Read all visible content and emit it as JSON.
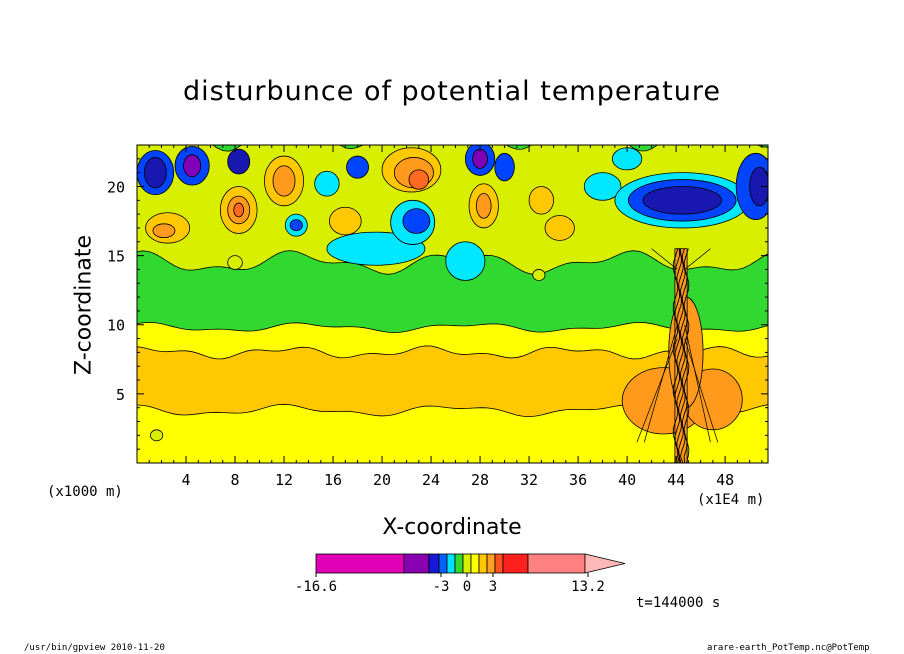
{
  "chart_data": {
    "type": "heatmap",
    "title": "disturbunce of potential temperature",
    "xlabel": "X-coordinate",
    "ylabel": "Z-coordinate",
    "x_unit_label": "(x1000 m)",
    "x_multiplier_label": "(x1E4 m)",
    "xticks": [
      "4",
      "8",
      "12",
      "16",
      "20",
      "24",
      "28",
      "32",
      "36",
      "40",
      "44",
      "48"
    ],
    "yticks": [
      "5",
      "10",
      "15",
      "20"
    ],
    "xlim": [
      0,
      51.5
    ],
    "ylim": [
      0,
      23
    ],
    "colorbar": {
      "tick_labels": [
        "-16.6",
        "-3",
        "0",
        "3",
        "13.2"
      ],
      "colors": [
        "#e000b8",
        "#8800b0",
        "#1818d8",
        "#0060ff",
        "#00e0ff",
        "#30d830",
        "#d8f000",
        "#ffff00",
        "#ffc800",
        "#ffa020",
        "#ff5020",
        "#ff2020",
        "#ff8080",
        "#ffb8b8"
      ]
    },
    "field_colors": {
      "yellow": "#ffff00",
      "light_orange": "#ffc800",
      "orange": "#ff9a1c",
      "red_orange": "#ff6a20",
      "lime": "#d8f000",
      "green": "#30d830",
      "cyan": "#00e8ff",
      "blue": "#0044ff",
      "navy": "#1818b0",
      "purple": "#8000b8"
    },
    "time_label": "t=144000 s"
  },
  "footer": {
    "left": "/usr/bin/gpview   2010-11-20",
    "right": "arare-earth_PotTemp.nc@PotTemp"
  }
}
